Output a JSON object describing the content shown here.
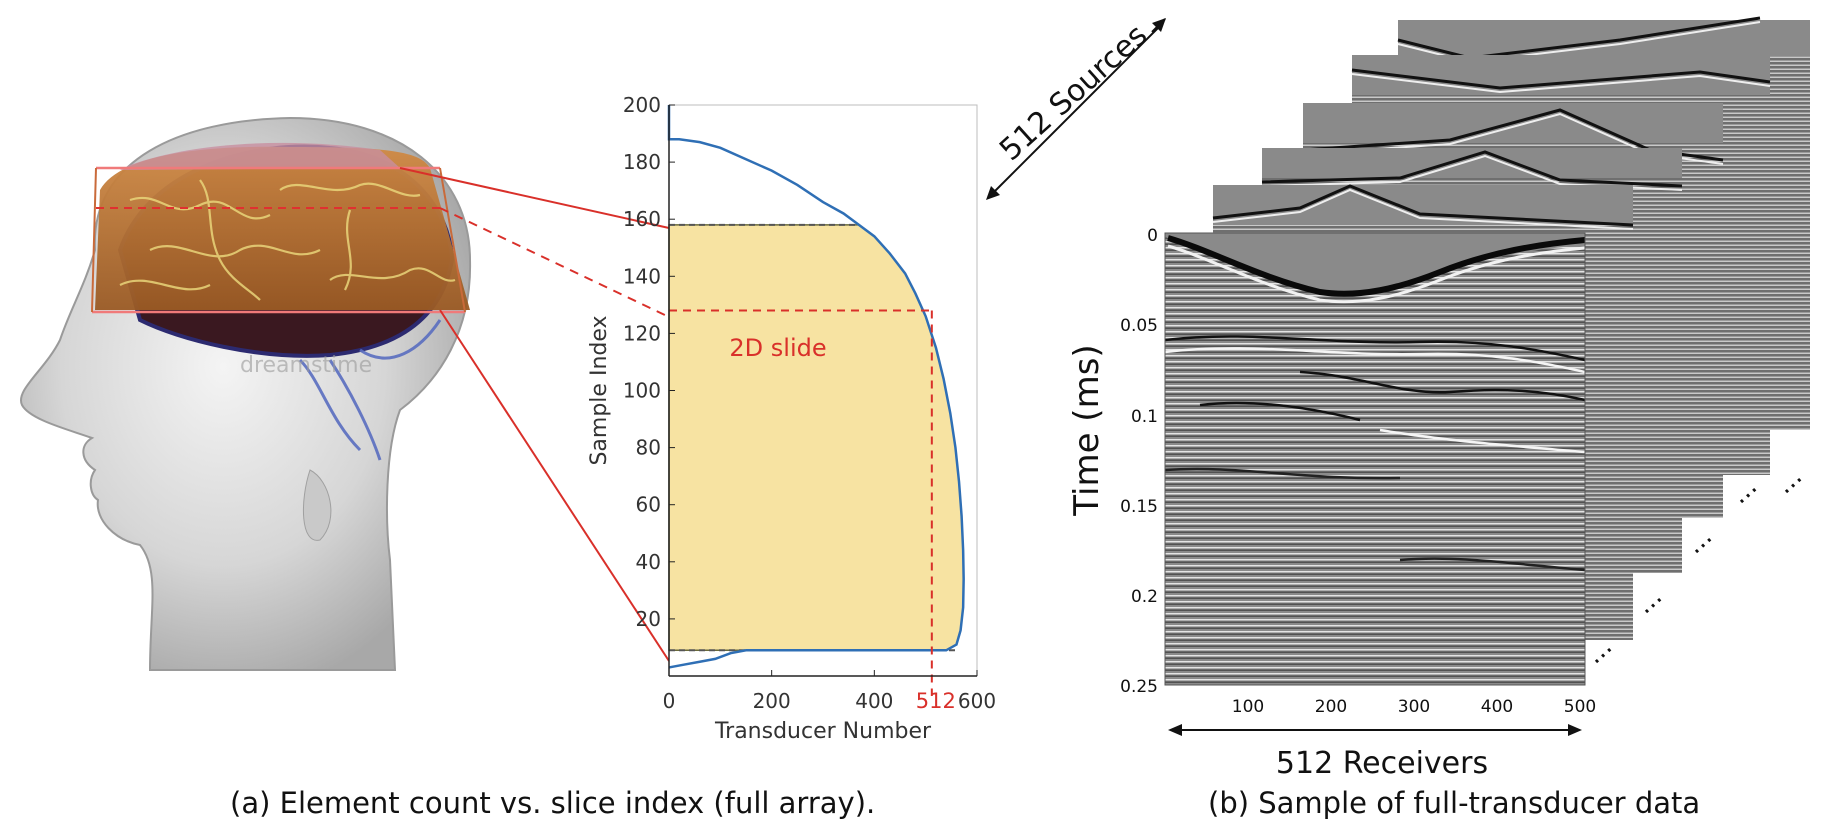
{
  "panel_a": {
    "caption": "(a) Element count vs. slice index (full array).",
    "slide_label": "2D slide",
    "marker_label": "512",
    "watermark": "dreamstime"
  },
  "panel_b": {
    "caption": "(b) Sample of full-transducer data",
    "sources_label": "512 Sources",
    "receivers_label": "512 Receivers",
    "time_axis_label": "Time (ms)",
    "y_ticks": [
      "0",
      "0.05",
      "0.1",
      "0.15",
      "0.2",
      "0.25"
    ],
    "x_ticks": [
      "100",
      "200",
      "300",
      "400",
      "500"
    ],
    "ellipsis": "..."
  },
  "colors": {
    "curve": "#2f6fb5",
    "fill": "#f7e3a2",
    "annotation_red": "#d9302a",
    "seismic_bg": "#8a8a8a"
  },
  "chart_data": {
    "type": "area",
    "title": "",
    "xlabel": "Transducer Number",
    "ylabel": "Sample Index",
    "xlim": [
      0,
      600
    ],
    "ylim": [
      0,
      200
    ],
    "x_ticks": [
      0,
      200,
      400,
      600
    ],
    "y_ticks": [
      20,
      40,
      60,
      80,
      100,
      120,
      140,
      160,
      180,
      200
    ],
    "grid": false,
    "series": [
      {
        "name": "Element count",
        "points": [
          [
            0,
            200
          ],
          [
            0,
            188
          ],
          [
            20,
            188
          ],
          [
            60,
            187
          ],
          [
            100,
            185
          ],
          [
            150,
            181
          ],
          [
            200,
            177
          ],
          [
            250,
            172
          ],
          [
            300,
            166
          ],
          [
            340,
            162
          ],
          [
            370,
            158
          ],
          [
            400,
            154
          ],
          [
            430,
            148
          ],
          [
            460,
            141
          ],
          [
            480,
            134
          ],
          [
            500,
            126
          ],
          [
            520,
            115
          ],
          [
            535,
            104
          ],
          [
            548,
            92
          ],
          [
            558,
            80
          ],
          [
            565,
            68
          ],
          [
            570,
            56
          ],
          [
            573,
            44
          ],
          [
            574,
            34
          ],
          [
            573,
            24
          ],
          [
            568,
            16
          ],
          [
            560,
            11
          ],
          [
            540,
            9
          ],
          [
            450,
            9
          ],
          [
            300,
            9
          ],
          [
            200,
            9
          ],
          [
            150,
            9
          ],
          [
            120,
            8
          ],
          [
            90,
            6
          ],
          [
            60,
            5
          ],
          [
            30,
            4
          ],
          [
            0,
            3
          ]
        ]
      }
    ],
    "highlight_band": {
      "y_min": 9,
      "y_max": 158
    },
    "crosshair": {
      "x": 512,
      "y": 128
    }
  }
}
